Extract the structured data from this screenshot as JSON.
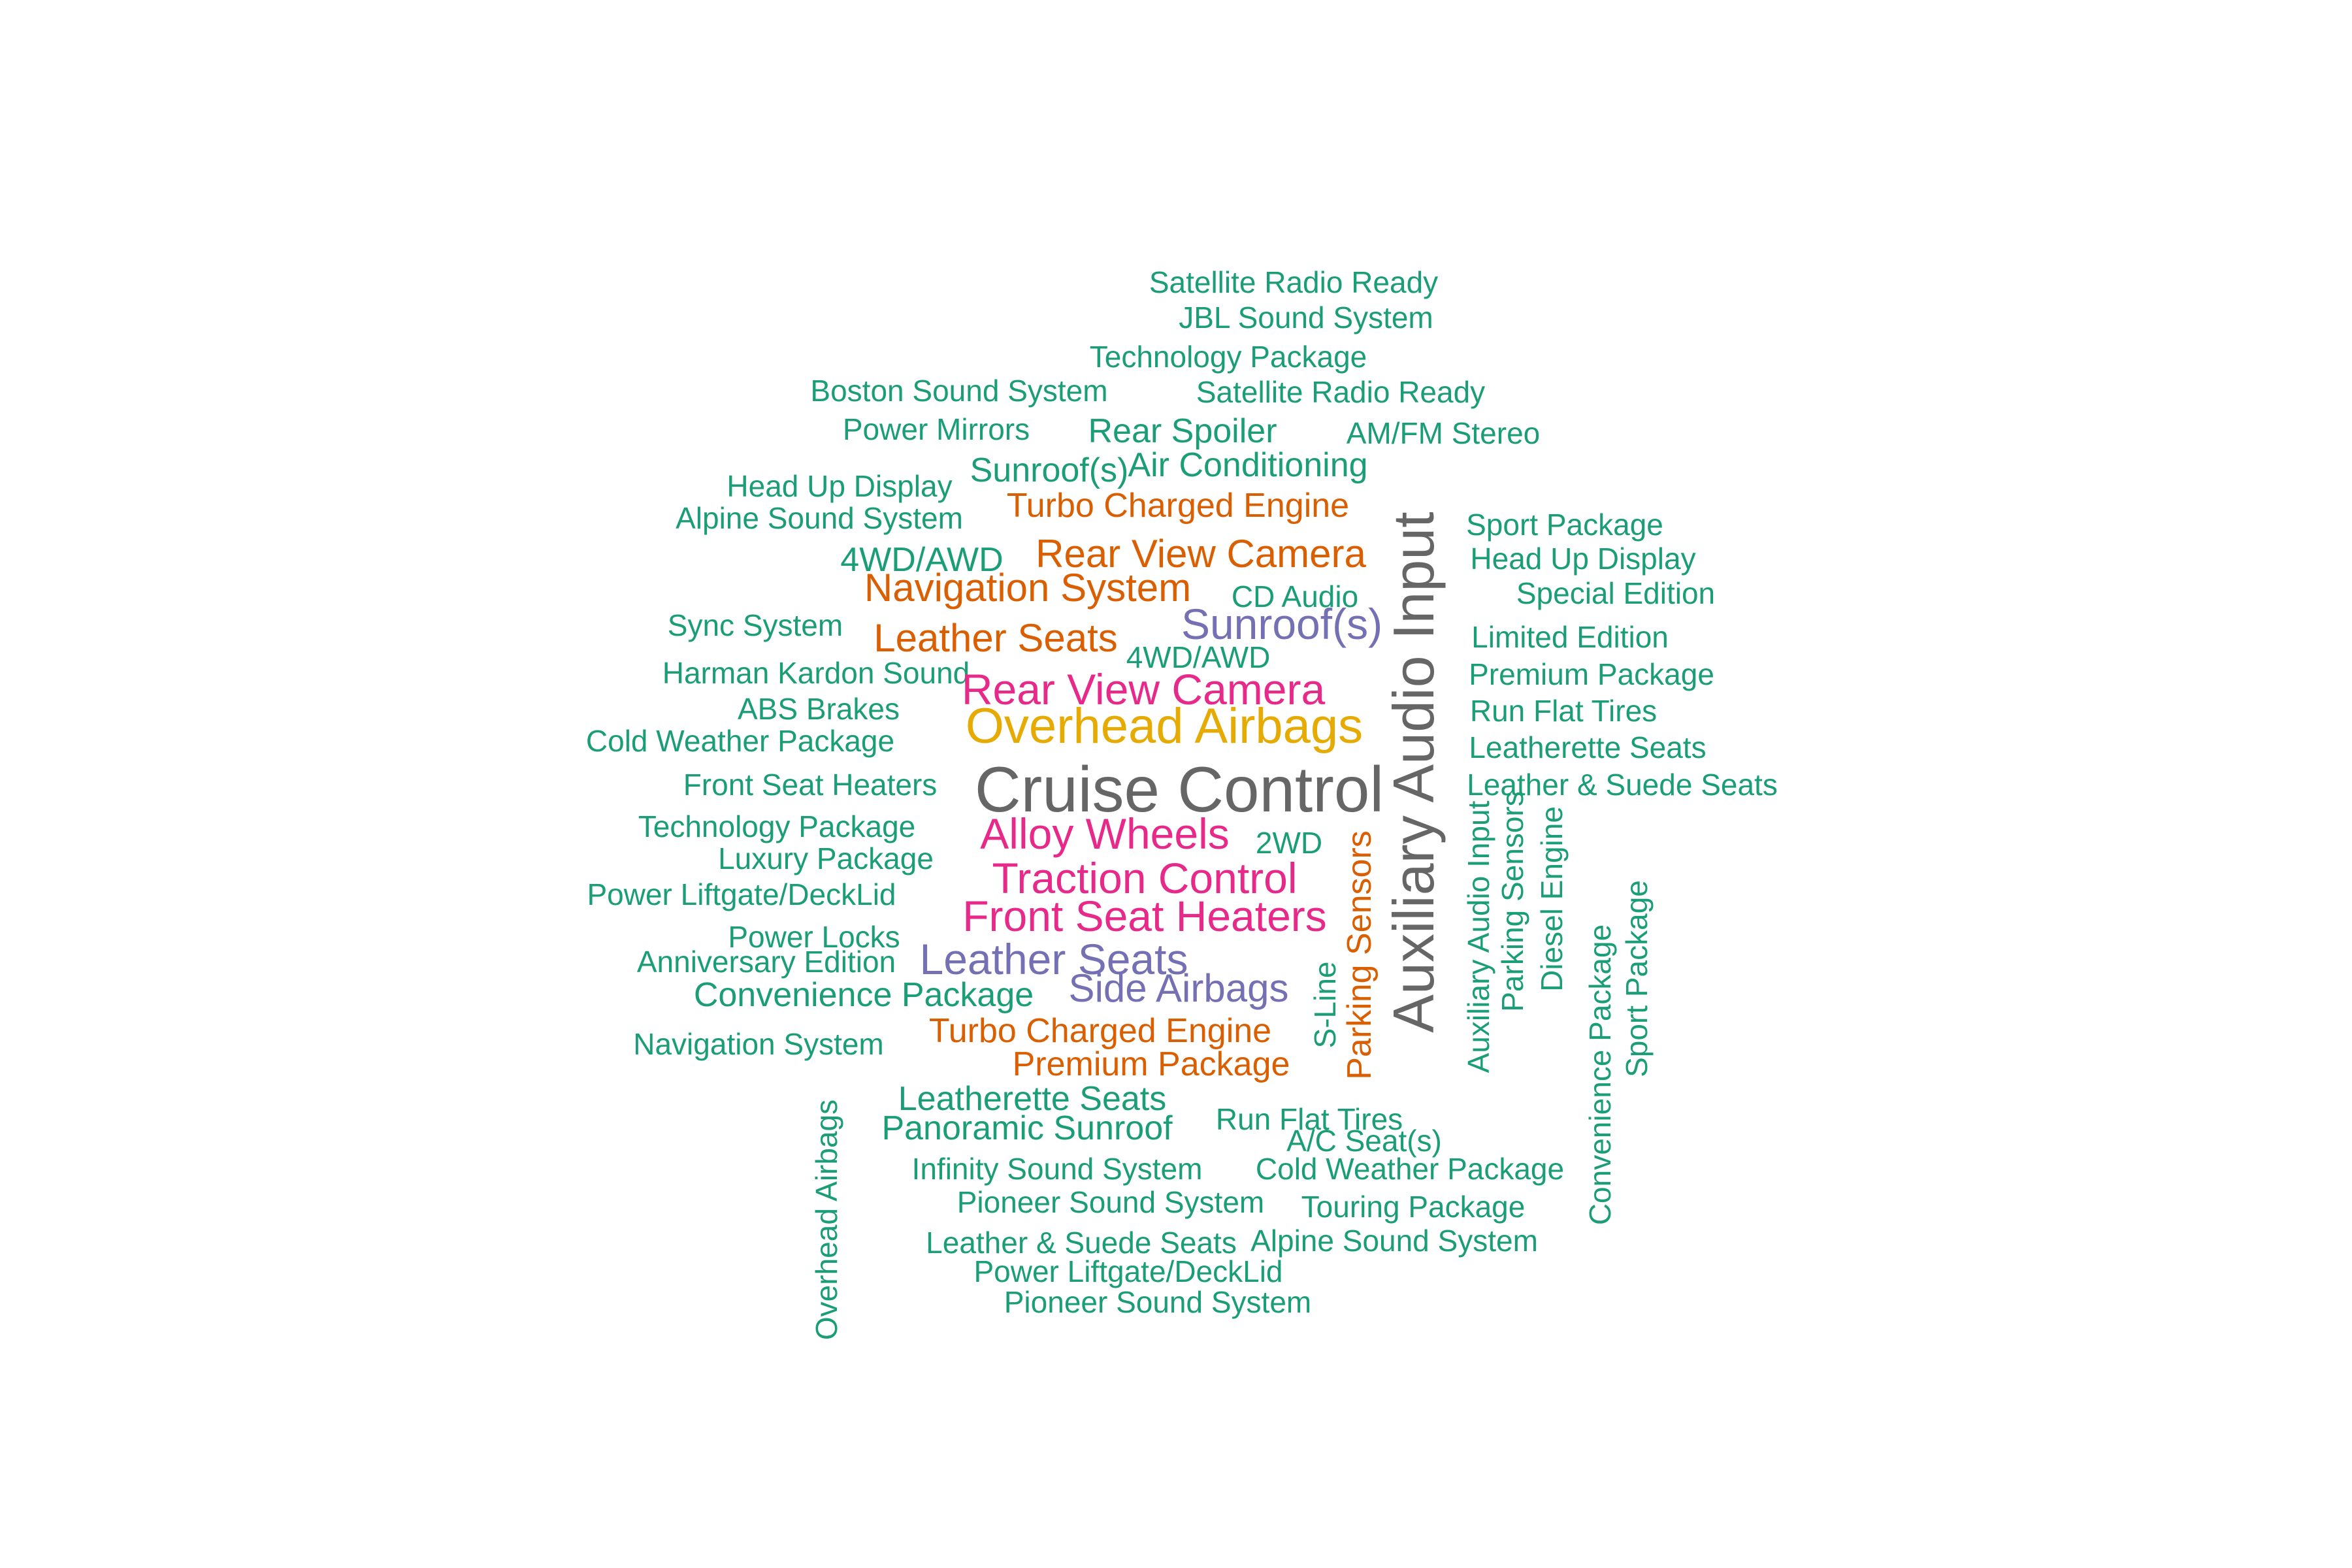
{
  "palette": {
    "green": "#1b9e77",
    "orange": "#d95f02",
    "purple": "#7570b3",
    "pink": "#e7298a",
    "gold": "#e6ab02",
    "gray": "#666666"
  },
  "words": [
    {
      "text": "Satellite Radio Ready",
      "color": "green",
      "size": 1
    },
    {
      "text": "JBL Sound System",
      "color": "green",
      "size": 1
    },
    {
      "text": "Technology Package",
      "color": "green",
      "size": 1
    },
    {
      "text": "Boston Sound System",
      "color": "green",
      "size": 1
    },
    {
      "text": "Satellite Radio Ready",
      "color": "green",
      "size": 1
    },
    {
      "text": "Power Mirrors",
      "color": "green",
      "size": 1
    },
    {
      "text": "Rear Spoiler",
      "color": "green",
      "size": 2
    },
    {
      "text": "AM/FM Stereo",
      "color": "green",
      "size": 1
    },
    {
      "text": "Sunroof(s)",
      "color": "green",
      "size": 2
    },
    {
      "text": "Air Conditioning",
      "color": "green",
      "size": 2
    },
    {
      "text": "Head Up Display",
      "color": "green",
      "size": 1
    },
    {
      "text": "Turbo Charged Engine",
      "color": "orange",
      "size": 2
    },
    {
      "text": "Alpine Sound System",
      "color": "green",
      "size": 1
    },
    {
      "text": "Sport Package",
      "color": "green",
      "size": 1
    },
    {
      "text": "Rear View Camera",
      "color": "orange",
      "size": 3
    },
    {
      "text": "Head Up Display",
      "color": "green",
      "size": 1
    },
    {
      "text": "4WD/AWD",
      "color": "green",
      "size": 2
    },
    {
      "text": "Navigation System",
      "color": "orange",
      "size": 3
    },
    {
      "text": "CD Audio",
      "color": "green",
      "size": 1
    },
    {
      "text": "Special Edition",
      "color": "green",
      "size": 1
    },
    {
      "text": "Sunroof(s)",
      "color": "purple",
      "size": 4
    },
    {
      "text": "Sync System",
      "color": "green",
      "size": 1
    },
    {
      "text": "Leather Seats",
      "color": "orange",
      "size": 3
    },
    {
      "text": "Limited Edition",
      "color": "green",
      "size": 1
    },
    {
      "text": "4WD/AWD",
      "color": "green",
      "size": 1
    },
    {
      "text": "Harman Kardon Sound",
      "color": "green",
      "size": 1
    },
    {
      "text": "Premium Package",
      "color": "green",
      "size": 1
    },
    {
      "text": "Rear View Camera",
      "color": "pink",
      "size": 4
    },
    {
      "text": "ABS Brakes",
      "color": "green",
      "size": 1
    },
    {
      "text": "Run Flat Tires",
      "color": "green",
      "size": 1
    },
    {
      "text": "Overhead Airbags",
      "color": "gold",
      "size": 5
    },
    {
      "text": "Cold Weather Package",
      "color": "green",
      "size": 1
    },
    {
      "text": "Leatherette Seats",
      "color": "green",
      "size": 1
    },
    {
      "text": "Auxiliary Audio Input",
      "color": "gray",
      "size": 6
    },
    {
      "text": "Front Seat Heaters",
      "color": "green",
      "size": 1
    },
    {
      "text": "Cruise Control",
      "color": "gray",
      "size": 7
    },
    {
      "text": "Leather & Suede Seats",
      "color": "green",
      "size": 1
    },
    {
      "text": "Technology Package",
      "color": "green",
      "size": 1
    },
    {
      "text": "Alloy Wheels",
      "color": "pink",
      "size": 4
    },
    {
      "text": "2WD",
      "color": "green",
      "size": 1
    },
    {
      "text": "Luxury Package",
      "color": "green",
      "size": 1
    },
    {
      "text": "Traction Control",
      "color": "pink",
      "size": 4
    },
    {
      "text": "Auxiliary Audio Input",
      "color": "green",
      "size": 1
    },
    {
      "text": "Parking Sensors",
      "color": "green",
      "size": 1
    },
    {
      "text": "Diesel Engine",
      "color": "green",
      "size": 1
    },
    {
      "text": "Power Liftgate/DeckLid",
      "color": "green",
      "size": 1
    },
    {
      "text": "Front Seat Heaters",
      "color": "pink",
      "size": 4
    },
    {
      "text": "Parking Sensors",
      "color": "orange",
      "size": 2
    },
    {
      "text": "Power Locks",
      "color": "green",
      "size": 1
    },
    {
      "text": "Anniversary Edition",
      "color": "green",
      "size": 1
    },
    {
      "text": "Leather Seats",
      "color": "purple",
      "size": 4
    },
    {
      "text": "S-Line",
      "color": "green",
      "size": 1
    },
    {
      "text": "Convenience Package",
      "color": "green",
      "size": 2
    },
    {
      "text": "Side Airbags",
      "color": "purple",
      "size": 3
    },
    {
      "text": "Sport Package",
      "color": "green",
      "size": 1
    },
    {
      "text": "Convenience Package",
      "color": "green",
      "size": 1
    },
    {
      "text": "Turbo Charged Engine",
      "color": "orange",
      "size": 2
    },
    {
      "text": "Navigation System",
      "color": "green",
      "size": 1
    },
    {
      "text": "Premium Package",
      "color": "orange",
      "size": 2
    },
    {
      "text": "Leatherette Seats",
      "color": "green",
      "size": 2
    },
    {
      "text": "Overhead Airbags",
      "color": "green",
      "size": 1
    },
    {
      "text": "Panoramic Sunroof",
      "color": "green",
      "size": 2
    },
    {
      "text": "Run Flat Tires",
      "color": "green",
      "size": 1
    },
    {
      "text": "A/C Seat(s)",
      "color": "green",
      "size": 1
    },
    {
      "text": "Infinity Sound System",
      "color": "green",
      "size": 1
    },
    {
      "text": "Cold Weather Package",
      "color": "green",
      "size": 1
    },
    {
      "text": "Pioneer Sound System",
      "color": "green",
      "size": 1
    },
    {
      "text": "Touring Package",
      "color": "green",
      "size": 1
    },
    {
      "text": "Leather & Suede Seats",
      "color": "green",
      "size": 1
    },
    {
      "text": "Alpine Sound System",
      "color": "green",
      "size": 1
    },
    {
      "text": "Power Liftgate/DeckLid",
      "color": "green",
      "size": 1
    },
    {
      "text": "Pioneer Sound System",
      "color": "green",
      "size": 1
    }
  ]
}
